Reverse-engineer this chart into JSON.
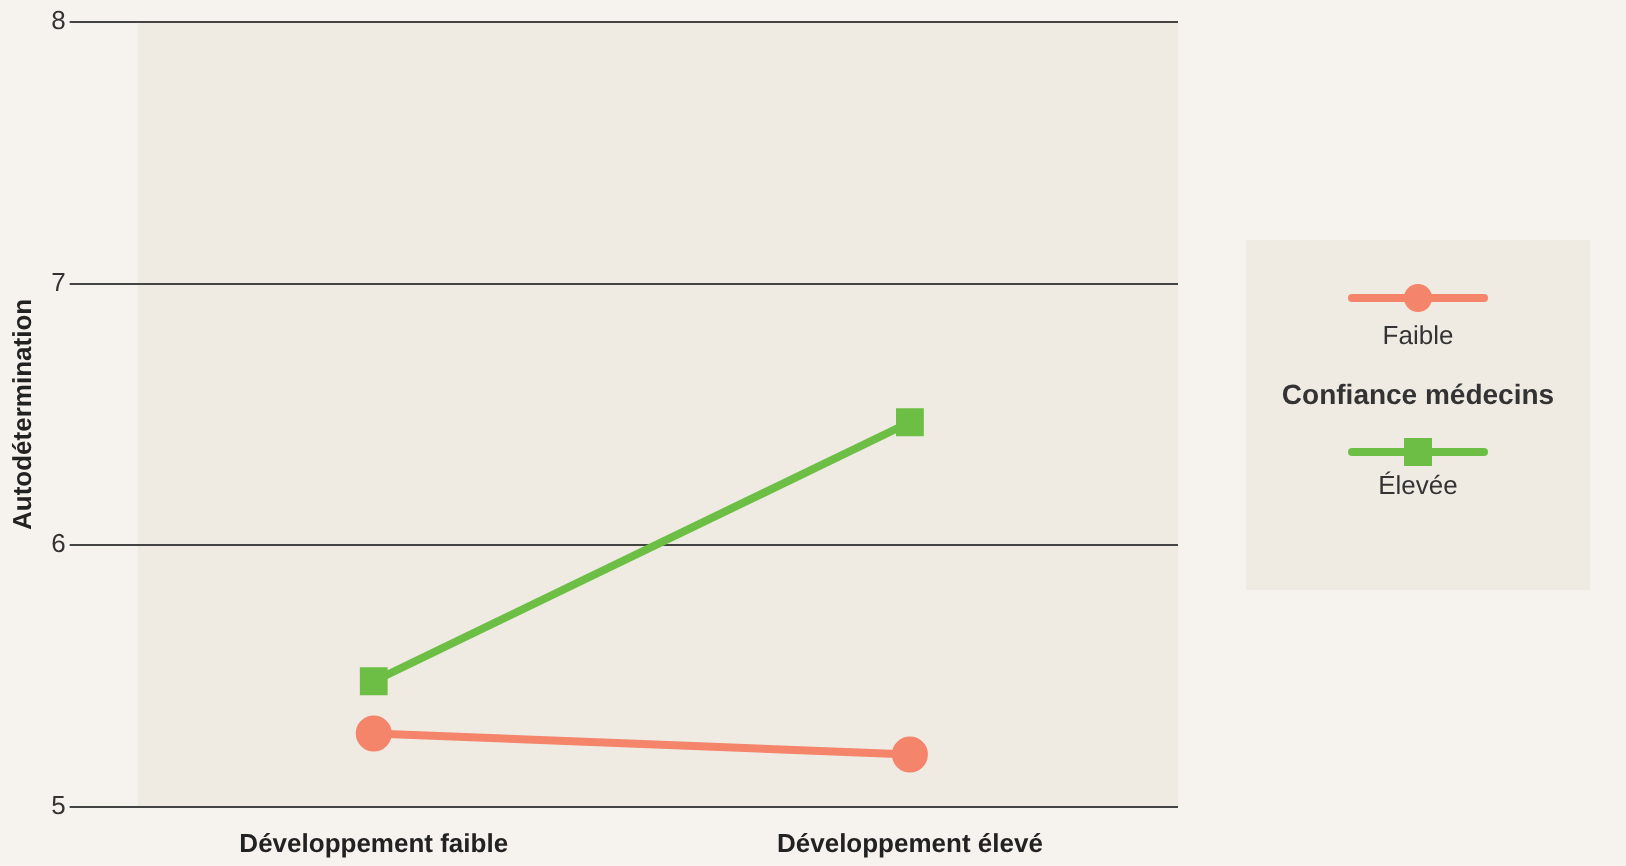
{
  "chart_data": {
    "type": "line",
    "ylabel": "Autodétermination",
    "legend_title": "Confiance médecins",
    "categories": [
      "Développement faible",
      "Développement élevé"
    ],
    "series": [
      {
        "name": "Faible",
        "color": "#f4846a",
        "values": [
          5.28,
          5.2
        ],
        "marker": "circle"
      },
      {
        "name": "Élevée",
        "color": "#6cbf44",
        "values": [
          5.48,
          6.47
        ],
        "marker": "square"
      }
    ],
    "ylim": [
      5,
      8
    ],
    "yticks": [
      5,
      6,
      7,
      8
    ],
    "grid": "y",
    "legend": "right"
  }
}
